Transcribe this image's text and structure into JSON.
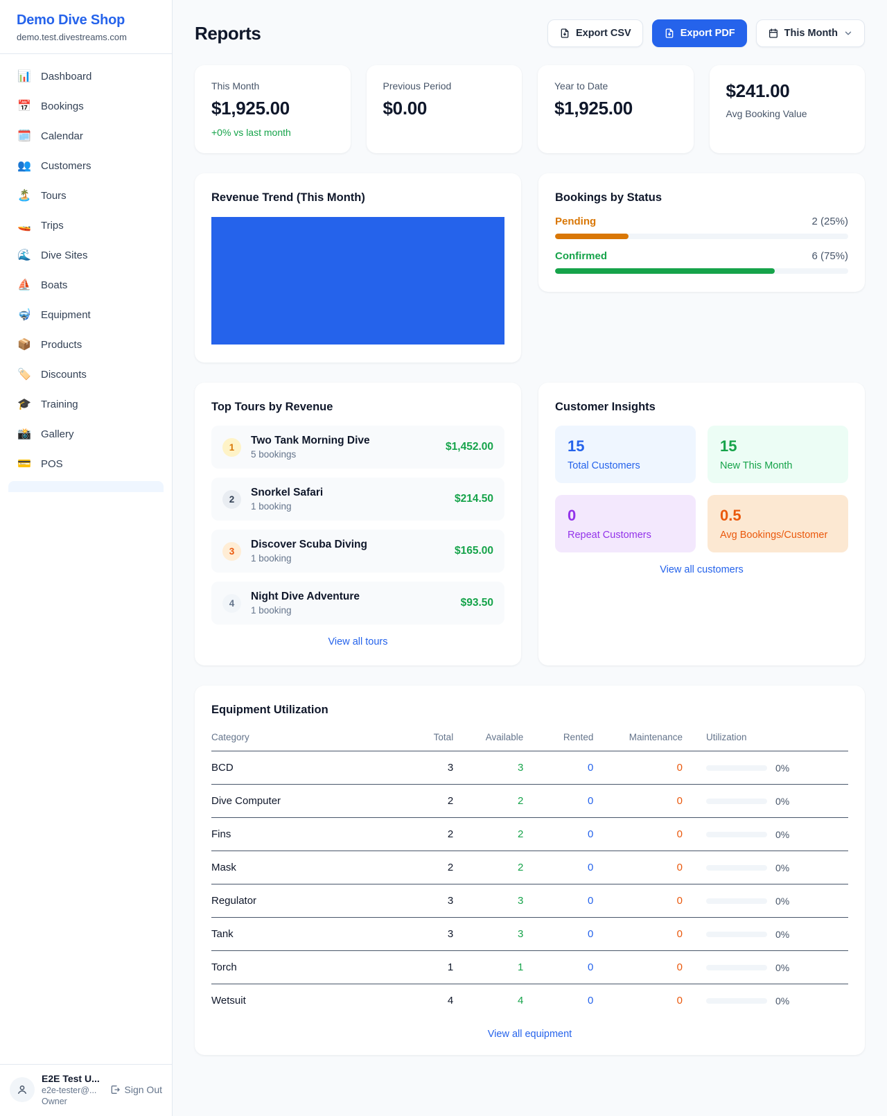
{
  "colors": {
    "accent_blue": "#2563eb",
    "green": "#16a34a",
    "amber": "#d97706",
    "orange": "#ea580c",
    "purple": "#9333ea",
    "page_bg": "#f8fafc"
  },
  "sidebar": {
    "brand": {
      "name": "Demo Dive Shop",
      "domain": "demo.test.divestreams.com"
    },
    "items": [
      {
        "icon": "📊",
        "label": "Dashboard"
      },
      {
        "icon": "📅",
        "label": "Bookings"
      },
      {
        "icon": "🗓️",
        "label": "Calendar"
      },
      {
        "icon": "👥",
        "label": "Customers"
      },
      {
        "icon": "🏝️",
        "label": "Tours"
      },
      {
        "icon": "🚤",
        "label": "Trips"
      },
      {
        "icon": "🌊",
        "label": "Dive Sites"
      },
      {
        "icon": "⛵",
        "label": "Boats"
      },
      {
        "icon": "🤿",
        "label": "Equipment"
      },
      {
        "icon": "📦",
        "label": "Products"
      },
      {
        "icon": "🏷️",
        "label": "Discounts"
      },
      {
        "icon": "🎓",
        "label": "Training"
      },
      {
        "icon": "📸",
        "label": "Gallery"
      },
      {
        "icon": "💳",
        "label": "POS"
      }
    ],
    "user": {
      "name": "E2E Test U...",
      "email": "e2e-tester@...",
      "role": "Owner",
      "sign_out_label": "Sign Out"
    }
  },
  "header": {
    "title": "Reports",
    "export_csv_label": "Export CSV",
    "export_pdf_label": "Export PDF",
    "period_label": "This Month"
  },
  "stats": [
    {
      "label": "This Month",
      "value": "$1,925.00",
      "delta": "+0% vs last month"
    },
    {
      "label": "Previous Period",
      "value": "$0.00"
    },
    {
      "label": "Year to Date",
      "value": "$1,925.00"
    },
    {
      "label": "Avg Booking Value",
      "value": "$241.00"
    }
  ],
  "revenue_trend": {
    "title": "Revenue Trend (This Month)",
    "chart_data": {
      "type": "bar",
      "categories": [
        "This Month"
      ],
      "values": [
        1925
      ],
      "title": "Revenue Trend (This Month)",
      "bar_color": "#2563eb",
      "layout": "single full-width bar, no axes or labels shown"
    }
  },
  "bookings_by_status": {
    "title": "Bookings by Status",
    "chart_data": {
      "type": "bar",
      "categories": [
        "Pending",
        "Confirmed"
      ],
      "values": [
        2,
        6
      ],
      "percents": [
        25,
        75
      ]
    },
    "statuses": [
      {
        "label": "Pending",
        "count_display": "2 (25%)",
        "pct": 25
      },
      {
        "label": "Confirmed",
        "count_display": "6 (75%)",
        "pct": 75
      }
    ]
  },
  "top_tours": {
    "title": "Top Tours by Revenue",
    "rows": [
      {
        "rank": "1",
        "name": "Two Tank Morning Dive",
        "bookings": "5 bookings",
        "amount": "$1,452.00"
      },
      {
        "rank": "2",
        "name": "Snorkel Safari",
        "bookings": "1 booking",
        "amount": "$214.50"
      },
      {
        "rank": "3",
        "name": "Discover Scuba Diving",
        "bookings": "1 booking",
        "amount": "$165.00"
      },
      {
        "rank": "4",
        "name": "Night Dive Adventure",
        "bookings": "1 booking",
        "amount": "$93.50"
      }
    ],
    "view_all_label": "View all tours"
  },
  "customer_insights": {
    "title": "Customer Insights",
    "boxes": [
      {
        "value": "15",
        "label": "Total Customers"
      },
      {
        "value": "15",
        "label": "New This Month"
      },
      {
        "value": "0",
        "label": "Repeat Customers"
      },
      {
        "value": "0.5",
        "label": "Avg Bookings/Customer"
      }
    ],
    "view_all_label": "View all customers"
  },
  "equipment": {
    "title": "Equipment Utilization",
    "columns": [
      "Category",
      "Total",
      "Available",
      "Rented",
      "Maintenance",
      "Utilization"
    ],
    "rows": [
      {
        "category": "BCD",
        "total": "3",
        "available": "3",
        "rented": "0",
        "maintenance": "0",
        "utilization_display": "0%",
        "utilization_pct": 0
      },
      {
        "category": "Dive Computer",
        "total": "2",
        "available": "2",
        "rented": "0",
        "maintenance": "0",
        "utilization_display": "0%",
        "utilization_pct": 0
      },
      {
        "category": "Fins",
        "total": "2",
        "available": "2",
        "rented": "0",
        "maintenance": "0",
        "utilization_display": "0%",
        "utilization_pct": 0
      },
      {
        "category": "Mask",
        "total": "2",
        "available": "2",
        "rented": "0",
        "maintenance": "0",
        "utilization_display": "0%",
        "utilization_pct": 0
      },
      {
        "category": "Regulator",
        "total": "3",
        "available": "3",
        "rented": "0",
        "maintenance": "0",
        "utilization_display": "0%",
        "utilization_pct": 0
      },
      {
        "category": "Tank",
        "total": "3",
        "available": "3",
        "rented": "0",
        "maintenance": "0",
        "utilization_display": "0%",
        "utilization_pct": 0
      },
      {
        "category": "Torch",
        "total": "1",
        "available": "1",
        "rented": "0",
        "maintenance": "0",
        "utilization_display": "0%",
        "utilization_pct": 0
      },
      {
        "category": "Wetsuit",
        "total": "4",
        "available": "4",
        "rented": "0",
        "maintenance": "0",
        "utilization_display": "0%",
        "utilization_pct": 0
      }
    ],
    "view_all_label": "View all equipment"
  }
}
